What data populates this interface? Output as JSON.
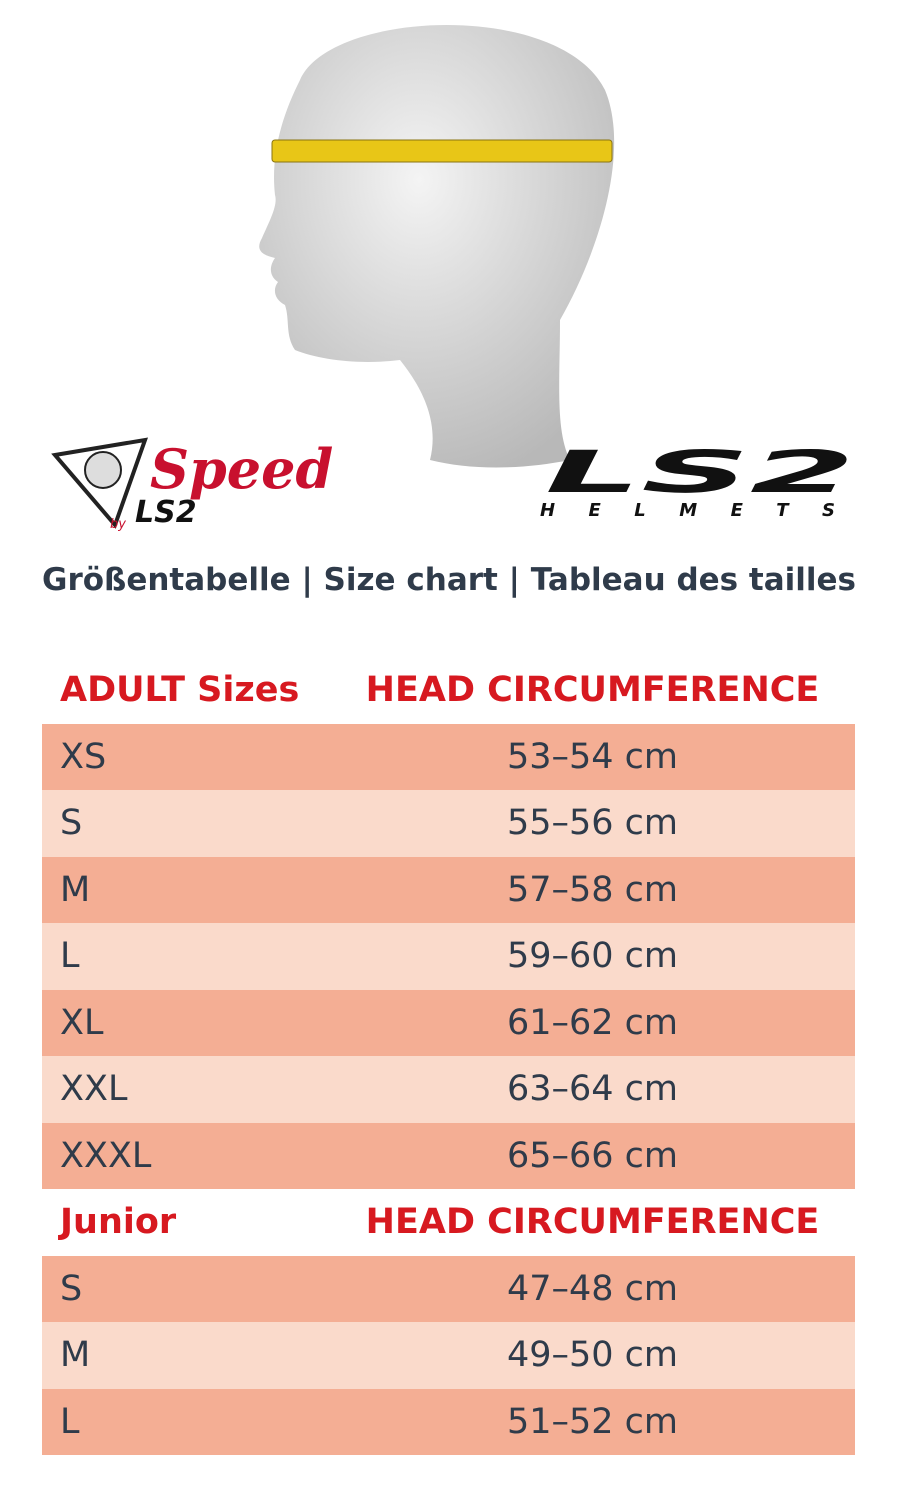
{
  "logos": {
    "speed": {
      "name": "Speed",
      "by": "by",
      "brand": "LS2"
    },
    "ls2": {
      "brand": "LS2",
      "tagline": "HELMETS"
    }
  },
  "subtitle": "Größentabelle | Size chart | Tableau des tailles",
  "sections": [
    {
      "header": [
        "ADULT Sizes",
        "HEAD CIRCUMFERENCE"
      ],
      "rows": [
        [
          "XS",
          "53–54 cm"
        ],
        [
          "S",
          "55–56 cm"
        ],
        [
          "M",
          "57–58 cm"
        ],
        [
          "L",
          "59–60 cm"
        ],
        [
          "XL",
          "61–62 cm"
        ],
        [
          "XXL",
          "63–64 cm"
        ],
        [
          "XXXL",
          "65–66 cm"
        ]
      ]
    },
    {
      "header": [
        "Junior",
        "HEAD CIRCUMFERENCE"
      ],
      "rows": [
        [
          "S",
          "47–48 cm"
        ],
        [
          "M",
          "49–50 cm"
        ],
        [
          "L",
          "51–52 cm"
        ]
      ]
    }
  ]
}
